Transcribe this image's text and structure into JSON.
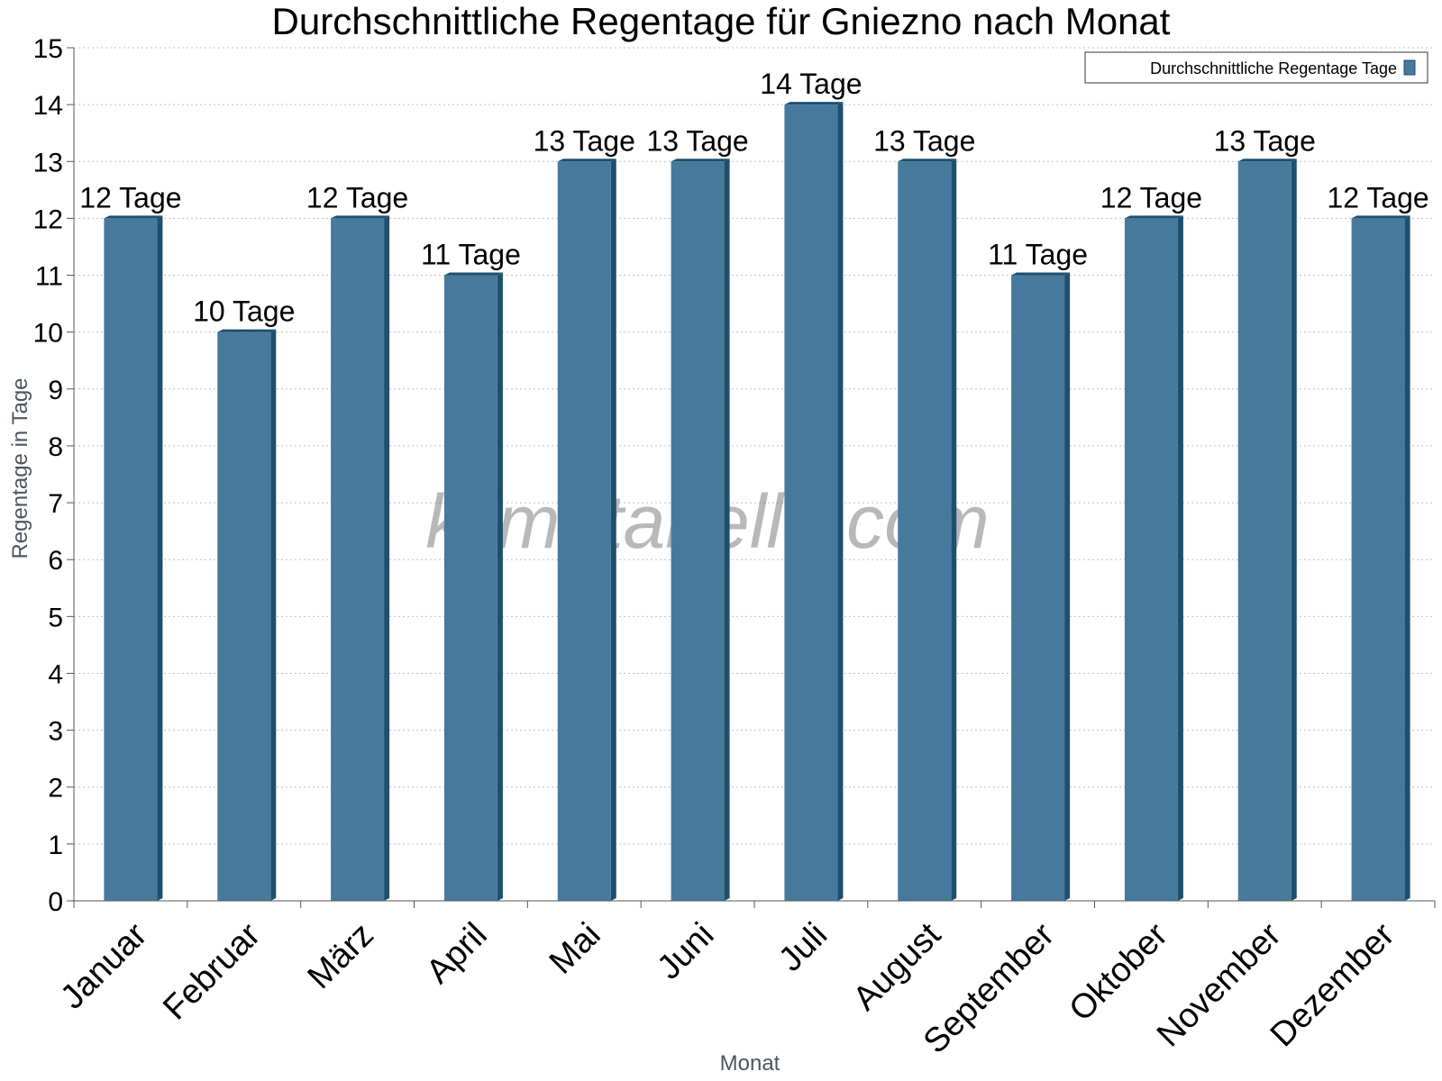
{
  "chart_data": {
    "type": "bar",
    "title": "Durchschnittliche Regentage für Gniezno nach Monat",
    "xlabel": "Monat",
    "ylabel": "Regentage in Tage",
    "categories": [
      "Januar",
      "Februar",
      "März",
      "April",
      "Mai",
      "Juni",
      "Juli",
      "August",
      "September",
      "Oktober",
      "November",
      "Dezember"
    ],
    "series": [
      {
        "name": "Durchschnittliche Regentage Tage",
        "values": [
          12,
          10,
          12,
          11,
          13,
          13,
          14,
          13,
          11,
          12,
          13,
          12
        ],
        "data_labels": [
          "12 Tage",
          "10 Tage",
          "12 Tage",
          "11 Tage",
          "13 Tage",
          "13 Tage",
          "14 Tage",
          "13 Tage",
          "11 Tage",
          "12 Tage",
          "13 Tage",
          "12 Tage"
        ]
      }
    ],
    "ylim": [
      0,
      15
    ],
    "yticks": [
      "0",
      "1",
      "2",
      "3",
      "4",
      "5",
      "6",
      "7",
      "8",
      "9",
      "10",
      "11",
      "12",
      "13",
      "14",
      "15"
    ],
    "grid": true,
    "legend_position": "top-right",
    "colors": {
      "bar_face": "#467a9d",
      "bar_side": "#1d4f6e",
      "bar_top": "#1d4f6e",
      "legend_swatch": "#467a9d"
    }
  },
  "watermark": "klimatabelle.com"
}
